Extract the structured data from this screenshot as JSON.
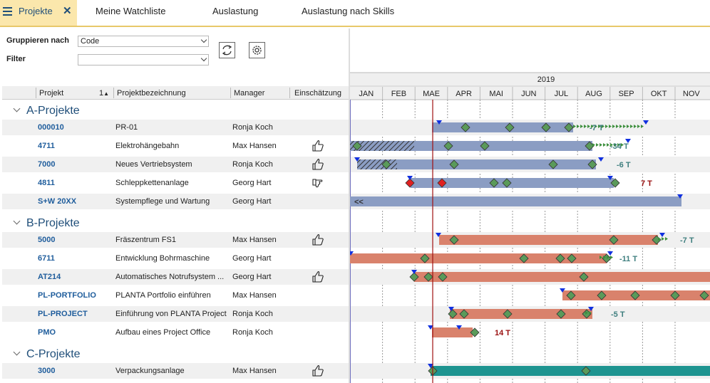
{
  "tabs": [
    {
      "label": "Projekte",
      "active": true
    },
    {
      "label": "Meine Watchliste"
    },
    {
      "label": "Auslastung"
    },
    {
      "label": "Auslastung nach Skills"
    }
  ],
  "controls": {
    "group_label": "Gruppieren nach",
    "group_value": "Code",
    "filter_label": "Filter",
    "filter_value": ""
  },
  "columns": {
    "code": "Projekt",
    "code_sort": "1",
    "desc": "Projektbezeichnung",
    "manager": "Manager",
    "estimate": "Einschätzung"
  },
  "timeline": {
    "year": "2019",
    "months": [
      "JAN",
      "FEB",
      "MAE",
      "APR",
      "MAI",
      "JUN",
      "JUL",
      "AUG",
      "SEP",
      "OKT",
      "NOV"
    ]
  },
  "groups": [
    {
      "title": "A-Projekte",
      "rows": [
        {
          "code": "000010",
          "desc": "PR-01",
          "manager": "Ronja Koch",
          "estimate": "",
          "label": "-7 T"
        },
        {
          "code": "4711",
          "desc": "Elektrohängebahn",
          "manager": "Max Hansen",
          "estimate": "thumbs-up",
          "label": "-34 T"
        },
        {
          "code": "7000",
          "desc": "Neues Vertriebsystem",
          "manager": "Ronja Koch",
          "estimate": "thumbs-up",
          "label": "-6 T"
        },
        {
          "code": "4811",
          "desc": "Schleppkettenanlage",
          "manager": "Georg Hart",
          "estimate": "hand-side",
          "label": "7 T"
        },
        {
          "code": "S+W 20XX",
          "desc": "Systempflege und Wartung",
          "manager": "Georg Hart",
          "estimate": "",
          "label": "<<"
        }
      ]
    },
    {
      "title": "B-Projekte",
      "rows": [
        {
          "code": "5000",
          "desc": "Fräszentrum FS1",
          "manager": "Max Hansen",
          "estimate": "thumbs-up",
          "label": "-7 T"
        },
        {
          "code": "6711",
          "desc": "Entwicklung Bohrmaschine",
          "manager": "Georg Hart",
          "estimate": "",
          "label": "-11 T"
        },
        {
          "code": "AT214",
          "desc": "Automatisches Notrufsystem ...",
          "manager": "Georg Hart",
          "estimate": "thumbs-up",
          "label": ""
        },
        {
          "code": "PL-PORTFOLIO",
          "desc": "PLANTA Portfolio einführen",
          "manager": "Max Hansen",
          "estimate": "",
          "label": ""
        },
        {
          "code": "PL-PROJECT",
          "desc": "Einführung von PLANTA Project",
          "manager": "Ronja Koch",
          "estimate": "",
          "label": "-5 T"
        },
        {
          "code": "PMO",
          "desc": "Aufbau eines Project Office",
          "manager": "Ronja Koch",
          "estimate": "",
          "label": "14 T"
        }
      ]
    },
    {
      "title": "C-Projekte",
      "rows": [
        {
          "code": "3000",
          "desc": "Verpackungsanlage",
          "manager": "Max Hansen",
          "estimate": "thumbs-up",
          "label": ""
        }
      ]
    }
  ],
  "colors": {
    "accent": "#1f4e79",
    "tab_active_bg": "#fbe7ac",
    "bar_a": "#8b9dc3",
    "bar_b": "#d9826c",
    "bar_c": "#1e9490",
    "milestone": "#5a9a5a",
    "late": "#e02020",
    "today_line": "#a01010"
  }
}
